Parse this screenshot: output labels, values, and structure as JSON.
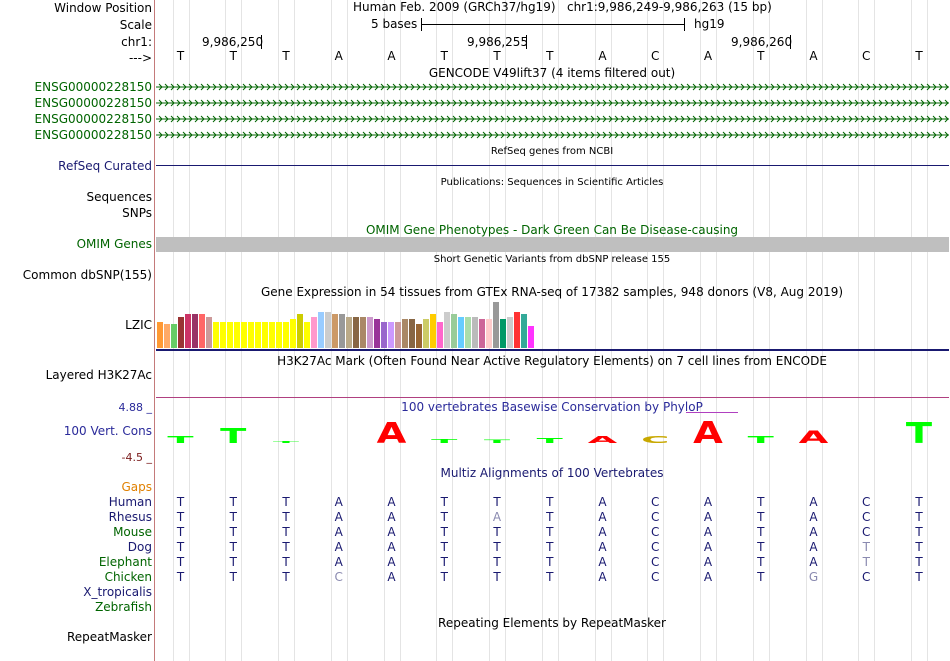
{
  "labels": {
    "window_position": "Window Position",
    "scale": "Scale",
    "chr": "chr1:",
    "strand": "--->",
    "gene_tracks": [
      "ENSG00000228150",
      "ENSG00000228150",
      "ENSG00000228150",
      "ENSG00000228150"
    ],
    "refseq": "RefSeq Curated",
    "sequences": "Sequences",
    "snps": "SNPs",
    "omim": "OMIM Genes",
    "dbsnp": "Common dbSNP(155)",
    "lzic": "LZIC",
    "h3k27ac": "Layered H3K27Ac",
    "cons_max": "4.88 _",
    "cons_label": "100 Vert. Cons",
    "cons_min": "-4.5 _",
    "gaps": "Gaps",
    "species": [
      "Human",
      "Rhesus",
      "Mouse",
      "Dog",
      "Elephant",
      "Chicken",
      "X_tropicalis",
      "Zebrafish"
    ],
    "repeatmasker": "RepeatMasker"
  },
  "header": {
    "assembly": "Human Feb. 2009 (GRCh37/hg19)",
    "position": "chr1:9,986,249-9,986,263 (15 bp)",
    "scale_text": "5 bases",
    "scale_db": "hg19",
    "coords": [
      "9,986,250",
      "9,986,255",
      "9,986,260"
    ]
  },
  "bases": [
    "T",
    "T",
    "T",
    "A",
    "A",
    "T",
    "T",
    "T",
    "A",
    "C",
    "A",
    "T",
    "A",
    "C",
    "T"
  ],
  "titles": {
    "gencode": "GENCODE V49lift37 (4 items filtered out)",
    "refseq": "RefSeq genes from NCBI",
    "publications": "Publications: Sequences in Scientific Articles",
    "omim": "OMIM Gene Phenotypes - Dark Green Can Be Disease-causing",
    "dbsnp": "Short Genetic Variants from dbSNP release 155",
    "gtex": "Gene Expression in 54 tissues from GTEx RNA-seq of 17382 samples, 948 donors (V8, Aug 2019)",
    "h3k27ac": "H3K27Ac Mark (Often Found Near Active Regulatory Elements) on 7 cell lines from ENCODE",
    "phylop": "100 vertebrates Basewise Conservation by PhyloP",
    "multiz": "Multiz Alignments of 100 Vertebrates",
    "repeatmasker": "Repeating Elements by RepeatMasker"
  },
  "alignment": [
    [
      "T",
      "T",
      "T",
      "A",
      "A",
      "T",
      "T",
      "T",
      "A",
      "C",
      "A",
      "T",
      "A",
      "C",
      "T"
    ],
    [
      "T",
      "T",
      "T",
      "A",
      "A",
      "T",
      "A",
      "T",
      "A",
      "C",
      "A",
      "T",
      "A",
      "C",
      "T"
    ],
    [
      "T",
      "T",
      "T",
      "A",
      "A",
      "T",
      "T",
      "T",
      "A",
      "C",
      "A",
      "T",
      "A",
      "C",
      "T"
    ],
    [
      "T",
      "T",
      "T",
      "A",
      "A",
      "T",
      "T",
      "T",
      "A",
      "C",
      "A",
      "T",
      "A",
      "T",
      "T"
    ],
    [
      "T",
      "T",
      "T",
      "A",
      "A",
      "T",
      "T",
      "T",
      "A",
      "C",
      "A",
      "T",
      "A",
      "T",
      "T"
    ],
    [
      "T",
      "T",
      "T",
      "C",
      "A",
      "T",
      "T",
      "T",
      "A",
      "C",
      "A",
      "T",
      "G",
      "C",
      "T"
    ]
  ],
  "alignment_mismatch": [
    [],
    [
      6
    ],
    [],
    [
      13
    ],
    [
      13
    ],
    [
      3,
      12
    ]
  ],
  "gtex_levels": [
    0.55,
    0.5,
    0.5,
    0.65,
    0.7,
    0.7,
    0.7,
    0.65,
    0.55,
    0.55,
    0.55,
    0.55,
    0.55,
    0.55,
    0.55,
    0.55,
    0.55,
    0.55,
    0.55,
    0.6,
    0.7,
    0.55,
    0.65,
    0.75,
    0.75,
    0.7,
    0.7,
    0.65,
    0.65,
    0.65,
    0.65,
    0.6,
    0.55,
    0.55,
    0.55,
    0.6,
    0.6,
    0.5,
    0.6,
    0.7,
    0.55,
    0.75,
    0.7,
    0.65,
    0.65,
    0.65,
    0.6,
    0.6,
    0.95,
    0.6,
    0.65,
    0.75,
    0.7,
    0.45
  ],
  "gtex_colors": [
    "#ff9933",
    "#ffaa66",
    "#66cc66",
    "#993333",
    "#cc3366",
    "#993366",
    "#ff6666",
    "#cc9999",
    "#ffff00",
    "#ffff00",
    "#ffff00",
    "#ffff00",
    "#ffff00",
    "#ffff00",
    "#ffff00",
    "#ffff00",
    "#ffff00",
    "#ffff00",
    "#ffff00",
    "#ffff00",
    "#cccc00",
    "#ffff00",
    "#ff99cc",
    "#99ccff",
    "#cccccc",
    "#cc9966",
    "#999999",
    "#bbaa88",
    "#886644",
    "#aa8866",
    "#cc99cc",
    "#993399",
    "#9966cc",
    "#cc99ff",
    "#cc9999",
    "#aa8866",
    "#886644",
    "#996633",
    "#cccc66",
    "#ffcc00",
    "#ff66cc",
    "#cccccc",
    "#99cc99",
    "#66ccff",
    "#aaddaa",
    "#bbbbbb",
    "#cc6699",
    "#ffcccc",
    "#999999",
    "#009966",
    "#cccccc",
    "#ff3333",
    "#33aa99",
    "#ff33ff"
  ],
  "phylop": {
    "letters": [
      "T",
      "T",
      "T",
      "A",
      "A",
      "T",
      "T",
      "T",
      "A",
      "C",
      "A",
      "T",
      "A",
      "C",
      "T"
    ],
    "heights": [
      0.3,
      0.6,
      0.08,
      0.0,
      0.85,
      0.15,
      0.12,
      0.2,
      0.3,
      0.3,
      0.9,
      0.3,
      0.5,
      0.0,
      0.85
    ]
  },
  "colors": {
    "pos": "#00ff00",
    "neg": "#ff0000",
    "gold": "#c8a800",
    "omim_bar": "#bfbfbf"
  }
}
